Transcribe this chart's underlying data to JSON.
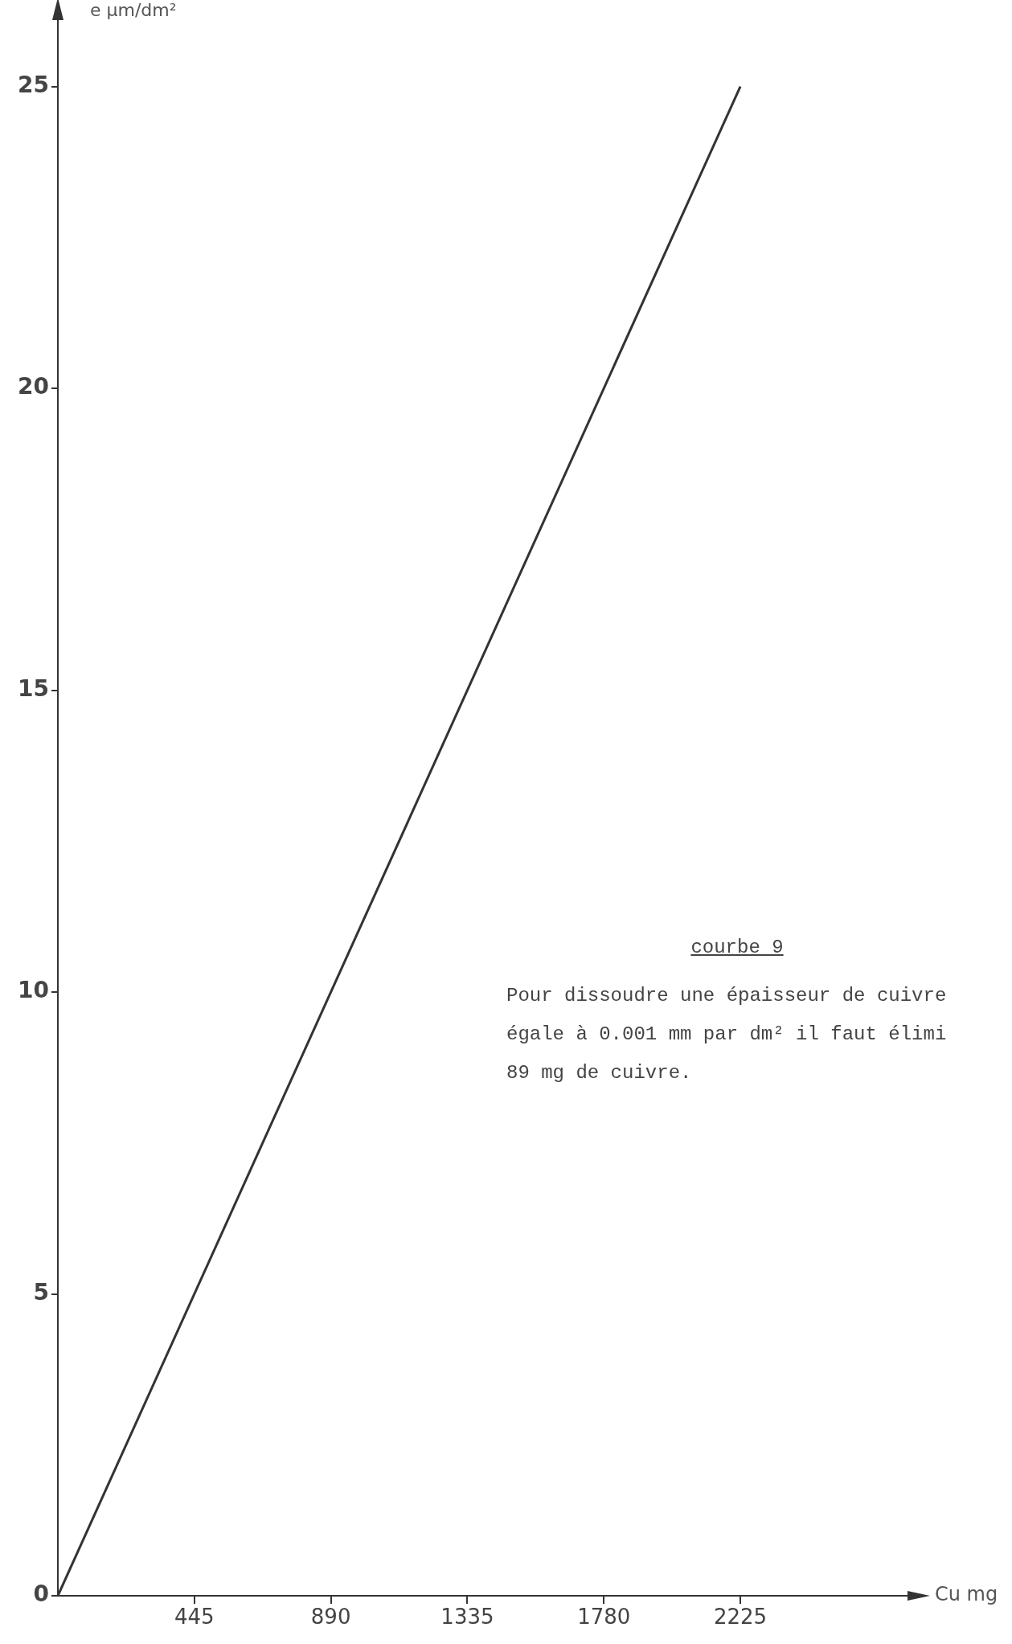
{
  "chart_data": {
    "type": "line",
    "xlabel": "Cu mg",
    "ylabel": "e µm/dm²",
    "x": [
      0,
      2225
    ],
    "series": [
      {
        "color": "#333333",
        "values": [
          0,
          25
        ]
      }
    ],
    "xlim": [
      0,
      2770
    ],
    "xticks": [
      445,
      890,
      1335,
      1780,
      2225
    ],
    "ylim": [
      0,
      26.1
    ],
    "yticks": [
      0,
      5,
      10,
      15,
      20,
      25
    ],
    "grid": false,
    "legend": false,
    "marker": "none",
    "line_style": "solid",
    "annotations": [
      "courbe 9",
      "Pour dissoudre une épaisseur de cuivre\négale à 0.001 mm par dm² il faut élimi\n89 mg de cuivre."
    ]
  }
}
